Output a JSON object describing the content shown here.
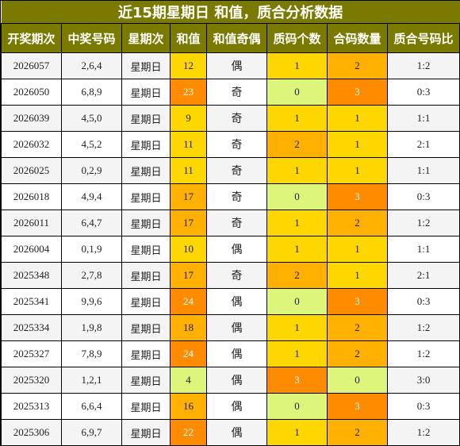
{
  "title": "近15期星期日 和值，质合分析数据",
  "headers": [
    "开奖期次",
    "中奖号码",
    "星期次",
    "和值",
    "和值奇偶",
    "质码个数",
    "合码数量",
    "质合号码比"
  ],
  "rows": [
    {
      "issue": "2026057",
      "numbers": "2,6,4",
      "weekday": "星期日",
      "sum": "12",
      "parity": "偶",
      "prime": "1",
      "composite": "2",
      "ratio": "1:2"
    },
    {
      "issue": "2026050",
      "numbers": "6,8,9",
      "weekday": "星期日",
      "sum": "23",
      "parity": "奇",
      "prime": "0",
      "composite": "3",
      "ratio": "0:3"
    },
    {
      "issue": "2026039",
      "numbers": "4,5,0",
      "weekday": "星期日",
      "sum": "9",
      "parity": "奇",
      "prime": "1",
      "composite": "1",
      "ratio": "1:1"
    },
    {
      "issue": "2026032",
      "numbers": "4,5,2",
      "weekday": "星期日",
      "sum": "11",
      "parity": "奇",
      "prime": "2",
      "composite": "1",
      "ratio": "2:1"
    },
    {
      "issue": "2026025",
      "numbers": "0,2,9",
      "weekday": "星期日",
      "sum": "11",
      "parity": "奇",
      "prime": "1",
      "composite": "1",
      "ratio": "1:1"
    },
    {
      "issue": "2026018",
      "numbers": "4,9,4",
      "weekday": "星期日",
      "sum": "17",
      "parity": "奇",
      "prime": "0",
      "composite": "3",
      "ratio": "0:3"
    },
    {
      "issue": "2026011",
      "numbers": "6,4,7",
      "weekday": "星期日",
      "sum": "17",
      "parity": "奇",
      "prime": "1",
      "composite": "2",
      "ratio": "1:2"
    },
    {
      "issue": "2026004",
      "numbers": "0,1,9",
      "weekday": "星期日",
      "sum": "10",
      "parity": "偶",
      "prime": "1",
      "composite": "1",
      "ratio": "1:1"
    },
    {
      "issue": "2025348",
      "numbers": "2,7,8",
      "weekday": "星期日",
      "sum": "17",
      "parity": "奇",
      "prime": "2",
      "composite": "1",
      "ratio": "2:1"
    },
    {
      "issue": "2025341",
      "numbers": "9,9,6",
      "weekday": "星期日",
      "sum": "24",
      "parity": "偶",
      "prime": "0",
      "composite": "3",
      "ratio": "0:3"
    },
    {
      "issue": "2025334",
      "numbers": "1,9,8",
      "weekday": "星期日",
      "sum": "18",
      "parity": "偶",
      "prime": "1",
      "composite": "2",
      "ratio": "1:2"
    },
    {
      "issue": "2025327",
      "numbers": "7,8,9",
      "weekday": "星期日",
      "sum": "24",
      "parity": "偶",
      "prime": "1",
      "composite": "2",
      "ratio": "1:2"
    },
    {
      "issue": "2025320",
      "numbers": "1,2,1",
      "weekday": "星期日",
      "sum": "4",
      "parity": "偶",
      "prime": "3",
      "composite": "0",
      "ratio": "3:0"
    },
    {
      "issue": "2025313",
      "numbers": "6,6,4",
      "weekday": "星期日",
      "sum": "16",
      "parity": "偶",
      "prime": "0",
      "composite": "3",
      "ratio": "0:3"
    },
    {
      "issue": "2025306",
      "numbers": "6,9,7",
      "weekday": "星期日",
      "sum": "22",
      "parity": "偶",
      "prime": "1",
      "composite": "2",
      "ratio": "1:2"
    }
  ]
}
